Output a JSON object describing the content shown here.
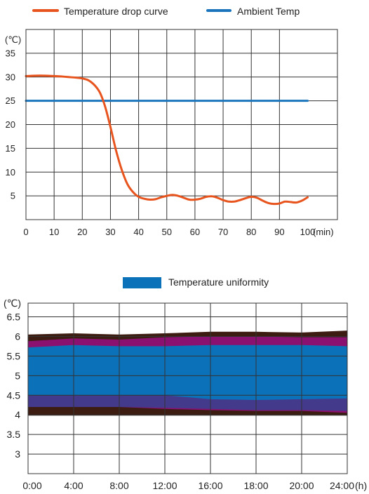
{
  "chart_data": [
    {
      "type": "line",
      "legend_position": "top",
      "x_unit_label": "(min)",
      "y_unit_label": "(℃)",
      "xlim": [
        0,
        100
      ],
      "ylim": [
        0,
        40
      ],
      "x_ticks": [
        0,
        10,
        20,
        30,
        40,
        50,
        60,
        70,
        80,
        90,
        100
      ],
      "y_ticks": [
        5,
        10,
        15,
        20,
        25,
        30,
        35
      ],
      "grid": true,
      "series": [
        {
          "name": "Temperature drop curve",
          "color": "#E8541E",
          "x": [
            0,
            5,
            10,
            15,
            20,
            23,
            26,
            28,
            30,
            32,
            34,
            36,
            38,
            40,
            42,
            44,
            46,
            48,
            50,
            52,
            54,
            56,
            58,
            60,
            62,
            64,
            66,
            68,
            70,
            72,
            74,
            76,
            78,
            80,
            82,
            84,
            86,
            88,
            90,
            92,
            94,
            96,
            98,
            100
          ],
          "y": [
            30.2,
            30.3,
            30.2,
            30.0,
            29.7,
            29.0,
            27.0,
            24.0,
            19.5,
            14.5,
            10.5,
            7.5,
            5.8,
            4.8,
            4.4,
            4.2,
            4.3,
            4.7,
            5.0,
            5.2,
            5.0,
            4.6,
            4.2,
            4.2,
            4.4,
            4.8,
            4.9,
            4.6,
            4.1,
            3.8,
            3.8,
            4.1,
            4.5,
            4.8,
            4.6,
            4.0,
            3.5,
            3.3,
            3.4,
            3.8,
            3.7,
            3.6,
            4.0,
            4.7
          ]
        },
        {
          "name": "Ambient Temp",
          "color": "#1B75BC",
          "x": [
            0,
            100
          ],
          "y": [
            25,
            25
          ]
        }
      ]
    },
    {
      "type": "area",
      "legend_position": "top",
      "x_unit_label": "(h)",
      "y_unit_label": "(℃)",
      "ylim": [
        2.5,
        6.85
      ],
      "y_ticks": [
        3,
        3.5,
        4,
        4.5,
        5,
        5.5,
        6,
        6.5
      ],
      "y_tick_labels": [
        "3",
        "3.5",
        "4",
        "4.5",
        "5",
        "5.5",
        "6",
        "6.5"
      ],
      "categories": [
        "0:00",
        "4:00",
        "8:00",
        "12:00",
        "16:00",
        "18:00",
        "20:00",
        "24:00"
      ],
      "grid": true,
      "legend": [
        {
          "name": "Temperature uniformity",
          "color": "#0B72BA"
        }
      ],
      "bands": [
        {
          "color": "#3D1C12",
          "lower": [
            3.98,
            3.98,
            3.98,
            3.98,
            3.98,
            3.98,
            3.98,
            3.98
          ],
          "upper": [
            6.05,
            6.08,
            6.05,
            6.08,
            6.12,
            6.12,
            6.1,
            6.15
          ]
        },
        {
          "color": "#8A1170",
          "lower": [
            4.2,
            4.2,
            4.2,
            4.15,
            4.12,
            4.1,
            4.1,
            4.05
          ],
          "upper": [
            5.88,
            5.95,
            5.92,
            5.98,
            6.0,
            6.0,
            5.98,
            5.98
          ]
        },
        {
          "color": "#433A8C",
          "lower": [
            4.2,
            4.2,
            4.2,
            4.18,
            4.15,
            4.12,
            4.12,
            4.1
          ],
          "upper": [
            4.5,
            4.5,
            4.5,
            4.5,
            4.5,
            4.5,
            4.5,
            4.5
          ]
        },
        {
          "color": "#0B72BA",
          "lower": [
            4.5,
            4.5,
            4.5,
            4.5,
            4.4,
            4.38,
            4.4,
            4.42
          ],
          "upper": [
            5.72,
            5.78,
            5.75,
            5.75,
            5.78,
            5.78,
            5.78,
            5.75
          ]
        }
      ]
    }
  ]
}
